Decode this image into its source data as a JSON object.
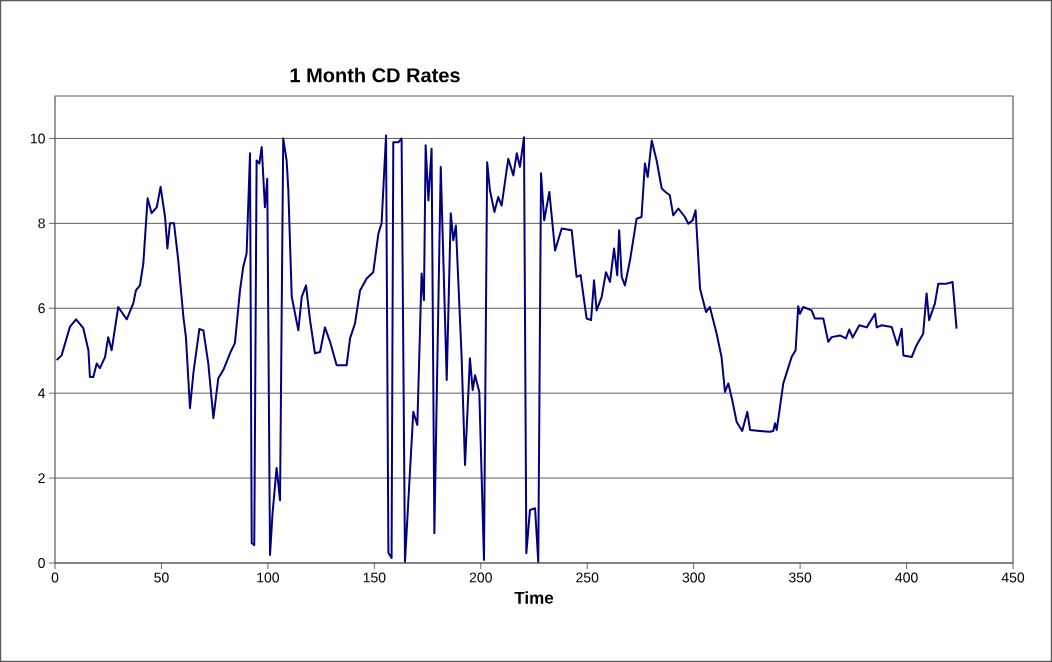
{
  "chart_data": {
    "type": "line",
    "title": "1 Month CD Rates",
    "xlabel": "Time",
    "xlim": [
      0,
      450
    ],
    "ylim": [
      0,
      11
    ],
    "xticks": [
      0,
      50,
      100,
      150,
      200,
      250,
      300,
      350,
      400,
      450
    ],
    "yticks": [
      0,
      2,
      4,
      6,
      8,
      10
    ],
    "grid": "y",
    "series": [
      {
        "color": "#000080",
        "x": [
          0.8,
          3.1,
          7,
          9.9,
          13.3,
          15.7,
          16.4,
          18,
          19.6,
          21.1,
          23.5,
          25,
          26.6,
          29.7,
          33.7,
          36.8,
          38,
          39.9,
          41.5,
          43.5,
          45.4,
          47.8,
          49.6,
          51.7,
          52.8,
          54,
          55.9,
          57.9,
          60.3,
          61.5,
          63.4,
          65,
          67.8,
          69.7,
          72,
          74.4,
          76.7,
          79,
          82.2,
          84.5,
          86.9,
          88.4,
          90,
          91.6,
          92.4,
          93.6,
          94.7,
          96,
          97.1,
          98.6,
          99.7,
          101,
          102.2,
          104.1,
          105.7,
          107.2,
          108.8,
          109.6,
          111.2,
          114.3,
          115.9,
          117.9,
          119.8,
          122.1,
          124.5,
          126.8,
          129.2,
          132.3,
          137,
          138.6,
          140.9,
          143.3,
          146.4,
          149.5,
          151.9,
          153.4,
          155.5,
          156.6,
          158.1,
          158.9,
          161.3,
          162.8,
          164.4,
          166.7,
          168.3,
          170.2,
          172.2,
          173.3,
          174.1,
          175.4,
          176.9,
          178.2,
          181.2,
          184,
          185.9,
          187.1,
          188.3,
          191,
          192.6,
          194.9,
          196.2,
          197.3,
          199.3,
          201.5,
          203,
          204.3,
          206.4,
          208.2,
          209.8,
          212.9,
          215.3,
          216.9,
          218.4,
          220.3,
          221.4,
          223.1,
          225.5,
          227,
          228.3,
          229.8,
          232.2,
          234.9,
          238,
          242.7,
          245,
          246.9,
          249.7,
          251.8,
          253.2,
          254.4,
          256.8,
          258.8,
          260.7,
          262.6,
          264.1,
          265,
          266.2,
          267.7,
          270.1,
          273.2,
          275.5,
          277.1,
          278.4,
          280.3,
          282.6,
          285,
          286.8,
          288.8,
          290.4,
          292.8,
          295.9,
          297.5,
          299.5,
          300.9,
          303,
          305.8,
          307.6,
          310.8,
          313.1,
          314.7,
          316.3,
          318.1,
          320.2,
          322.8,
          325.2,
          326.5,
          331.1,
          335.8,
          337.4,
          338.2,
          339,
          342.1,
          346,
          347.9,
          349.1,
          349.9,
          351.5,
          355.4,
          356.9,
          360.9,
          363.2,
          364.8,
          368.7,
          371.5,
          373.1,
          374.7,
          377.8,
          381.3,
          385.2,
          386,
          388.3,
          393,
          395.7,
          397.7,
          398.5,
          402.4,
          404.7,
          407.8,
          409.4,
          410.6,
          413.3,
          414.9,
          418.8,
          421.6,
          423.5
        ],
        "values": [
          4.78,
          4.89,
          5.56,
          5.74,
          5.53,
          5.01,
          4.38,
          4.38,
          4.7,
          4.59,
          4.85,
          5.32,
          5.01,
          6.03,
          5.74,
          6.12,
          6.42,
          6.54,
          7.06,
          8.59,
          8.24,
          8.38,
          8.86,
          8.15,
          7.41,
          8.0,
          8.0,
          7.13,
          5.8,
          5.32,
          3.65,
          4.47,
          5.51,
          5.48,
          4.7,
          3.41,
          4.35,
          4.54,
          4.94,
          5.18,
          6.42,
          6.97,
          7.29,
          9.65,
          0.47,
          0.42,
          9.48,
          9.41,
          9.8,
          8.38,
          9.05,
          0.19,
          1.18,
          2.24,
          1.48,
          10.0,
          9.48,
          8.78,
          6.27,
          5.48,
          6.27,
          6.54,
          5.72,
          4.94,
          4.97,
          5.55,
          5.21,
          4.66,
          4.66,
          5.29,
          5.64,
          6.42,
          6.7,
          6.85,
          7.76,
          8.0,
          10.07,
          0.24,
          0.12,
          9.91,
          9.91,
          10.0,
          0.03,
          2.12,
          3.56,
          3.25,
          6.82,
          6.19,
          9.84,
          8.54,
          9.76,
          0.7,
          9.33,
          4.31,
          8.24,
          7.6,
          7.95,
          4.85,
          2.31,
          4.82,
          4.07,
          4.42,
          4.03,
          0.07,
          9.44,
          8.78,
          8.27,
          8.62,
          8.42,
          9.52,
          9.13,
          9.65,
          9.33,
          10.03,
          0.23,
          1.25,
          1.29,
          0.03,
          9.18,
          8.07,
          8.74,
          7.36,
          7.88,
          7.84,
          6.74,
          6.78,
          5.76,
          5.72,
          6.66,
          5.95,
          6.27,
          6.85,
          6.62,
          7.41,
          6.78,
          7.84,
          6.74,
          6.54,
          7.13,
          8.11,
          8.15,
          9.41,
          9.09,
          9.95,
          9.48,
          8.82,
          8.74,
          8.66,
          8.19,
          8.35,
          8.15,
          7.99,
          8.07,
          8.31,
          6.46,
          5.91,
          6.03,
          5.4,
          4.85,
          4.03,
          4.23,
          3.84,
          3.32,
          3.11,
          3.56,
          3.13,
          3.11,
          3.09,
          3.11,
          3.29,
          3.13,
          4.23,
          4.85,
          5.01,
          6.05,
          5.87,
          6.03,
          5.95,
          5.76,
          5.76,
          5.21,
          5.32,
          5.36,
          5.29,
          5.5,
          5.31,
          5.6,
          5.55,
          5.87,
          5.55,
          5.6,
          5.56,
          5.13,
          5.52,
          4.89,
          4.85,
          5.13,
          5.4,
          6.35,
          5.72,
          6.11,
          6.58,
          6.58,
          6.62,
          5.52
        ]
      }
    ]
  }
}
